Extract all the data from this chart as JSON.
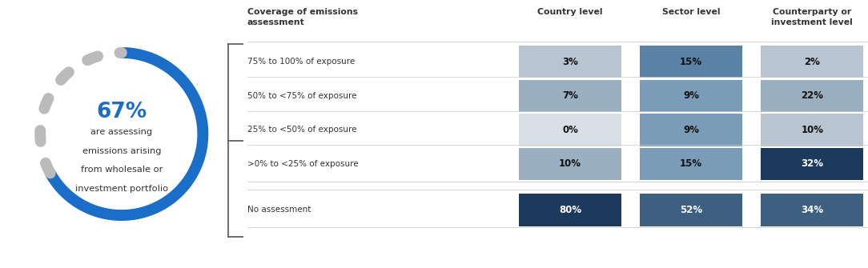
{
  "pct_67": "67%",
  "circle_text_line1": "are assessing",
  "circle_text_line2": "emissions arising",
  "circle_text_line3": "from wholesale or",
  "circle_text_line4": "investment portfolio",
  "circle_blue": "#1A6EC8",
  "circle_dotted": "#BBBBBB",
  "table_header_col0": "Coverage of emissions\nassessment",
  "table_header_col1": "Country level",
  "table_header_col2": "Sector level",
  "table_header_col3": "Counterparty or\ninvestment level",
  "row_labels": [
    "75% to 100% of exposure",
    "50% to <75% of exposure",
    "25% to <50% of exposure",
    ">0% to <25% of exposure"
  ],
  "no_assess_label": "No assessment",
  "country_vals": [
    "3%",
    "7%",
    "0%",
    "10%"
  ],
  "sector_vals": [
    "15%",
    "9%",
    "9%",
    "15%"
  ],
  "cp_vals": [
    "2%",
    "22%",
    "10%",
    "32%"
  ],
  "country_no": "80%",
  "sector_no": "52%",
  "cp_no": "34%",
  "country_colors": [
    "#B8C5D0",
    "#9AAFC0",
    "#D8DFE6",
    "#9AAFC0"
  ],
  "sector_colors": [
    "#5B82A4",
    "#7A9CB8",
    "#7A9CB8",
    "#7A9CB8"
  ],
  "cp_colors": [
    "#B8C5D0",
    "#9AAFC0",
    "#B8C5D0",
    "#1C3A5C"
  ],
  "no_country_color": "#1C3A5C",
  "no_sector_color": "#3D6080",
  "no_cp_color": "#3D6080",
  "bg_color": "#FFFFFF",
  "text_dark": "#333333",
  "text_white": "#FFFFFF",
  "text_black_bold": "#111111",
  "line_color": "#CCCCCC",
  "bracket_color": "#555555"
}
